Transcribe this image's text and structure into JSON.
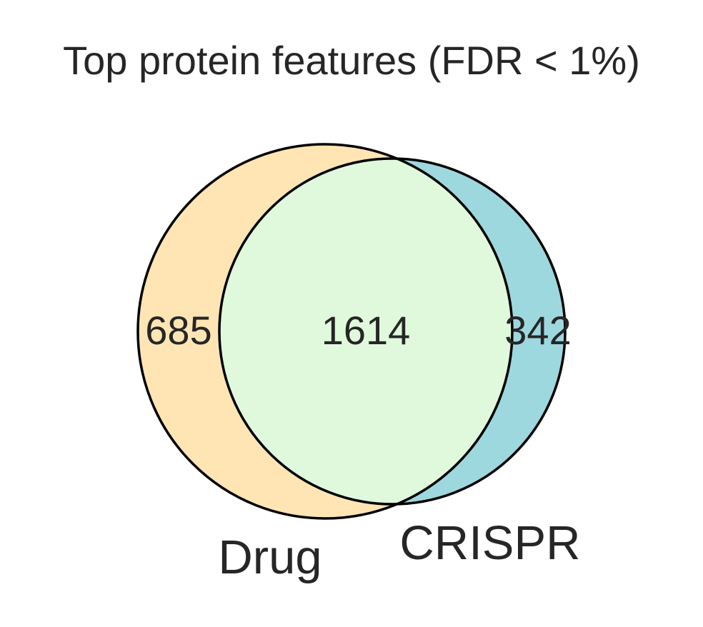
{
  "title": "Top protein features (FDR < 1%)",
  "sets": [
    {
      "key": "drug",
      "label": "Drug",
      "color": "#ffe5b4"
    },
    {
      "key": "crispr",
      "label": "CRISPR",
      "color": "#9ed8df"
    }
  ],
  "regions": {
    "drug_only": "685",
    "both": "1614",
    "crispr_only": "342"
  },
  "overlap_color": "#e0f9dc",
  "edge_color": "#000000",
  "text_color": "#262626"
}
